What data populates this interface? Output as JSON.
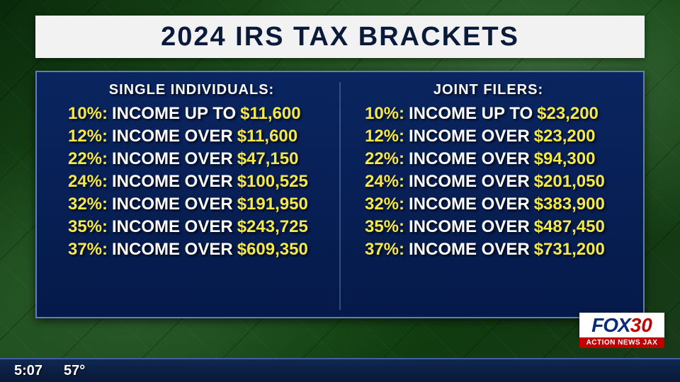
{
  "title": "2024 IRS TAX BRACKETS",
  "columns": [
    {
      "header": "SINGLE INDIVIDUALS:",
      "rows": [
        {
          "pct": "10%:",
          "label": "INCOME UP TO",
          "amount": "$11,600"
        },
        {
          "pct": "12%:",
          "label": "INCOME OVER",
          "amount": "$11,600"
        },
        {
          "pct": "22%:",
          "label": "INCOME OVER",
          "amount": "$47,150"
        },
        {
          "pct": "24%:",
          "label": "INCOME OVER",
          "amount": "$100,525"
        },
        {
          "pct": "32%:",
          "label": "INCOME OVER",
          "amount": "$191,950"
        },
        {
          "pct": "35%:",
          "label": "INCOME OVER",
          "amount": "$243,725"
        },
        {
          "pct": "37%:",
          "label": "INCOME OVER",
          "amount": "$609,350"
        }
      ]
    },
    {
      "header": "JOINT FILERS:",
      "rows": [
        {
          "pct": "10%:",
          "label": "INCOME UP TO",
          "amount": "$23,200"
        },
        {
          "pct": "12%:",
          "label": "INCOME OVER",
          "amount": "$23,200"
        },
        {
          "pct": "22%:",
          "label": "INCOME OVER",
          "amount": "$94,300"
        },
        {
          "pct": "24%:",
          "label": "INCOME OVER",
          "amount": "$201,050"
        },
        {
          "pct": "32%:",
          "label": "INCOME OVER",
          "amount": "$383,900"
        },
        {
          "pct": "35%:",
          "label": "INCOME OVER",
          "amount": "$487,450"
        },
        {
          "pct": "37%:",
          "label": "INCOME OVER",
          "amount": "$731,200"
        }
      ]
    }
  ],
  "logo": {
    "network": "FOX",
    "channel": "30",
    "tagline": "ACTION NEWS JAX"
  },
  "ticker": {
    "time": "5:07",
    "temp": "57°"
  },
  "colors": {
    "title_bg": "#f2f2f2",
    "title_text": "#0a1a3a",
    "panel_bg_top": "#0a2560",
    "panel_bg_bottom": "#051a4a",
    "panel_border": "#6080b0",
    "highlight": "#f5e84a",
    "body_text": "#ffffff",
    "logo_blue": "#0a2a7a",
    "logo_red": "#c00000",
    "ticker_top": "#102850",
    "ticker_bottom": "#081838"
  },
  "typography": {
    "title_fontsize": 38,
    "header_fontsize": 20,
    "row_fontsize": 24,
    "ticker_fontsize": 20,
    "weight": 800
  }
}
